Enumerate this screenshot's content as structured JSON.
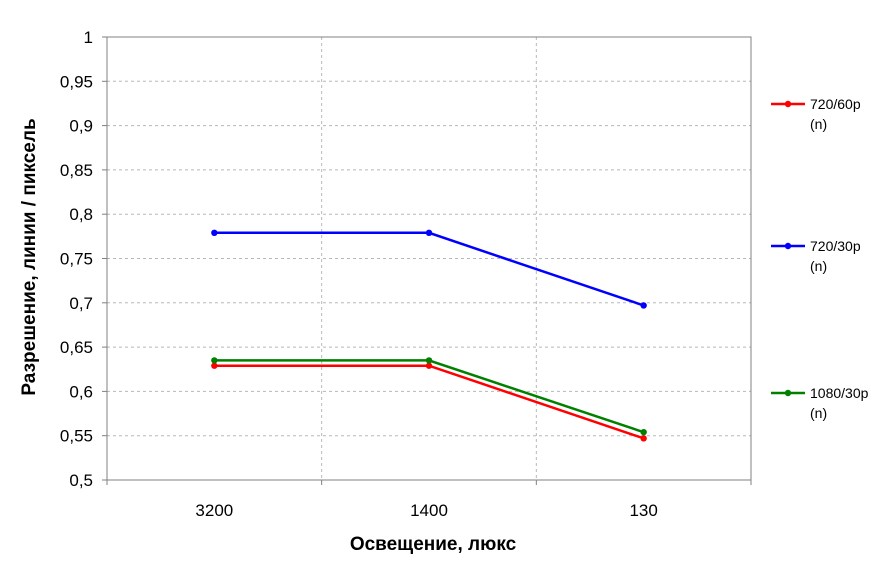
{
  "chart_data": {
    "type": "line",
    "title": "",
    "xlabel": "Освещение, люкс",
    "ylabel": "Разрешение, линии / пиксель",
    "categories": [
      "3200",
      "1400",
      "130"
    ],
    "ylim": [
      0.5,
      1.0
    ],
    "yticks": [
      "0,5",
      "0,55",
      "0,6",
      "0,65",
      "0,7",
      "0,75",
      "0,8",
      "0,85",
      "0,9",
      "0,95",
      "1"
    ],
    "ytick_values": [
      0.5,
      0.55,
      0.6,
      0.65,
      0.7,
      0.75,
      0.8,
      0.85,
      0.9,
      0.95,
      1.0
    ],
    "grid": true,
    "legend_position": "right",
    "series": [
      {
        "name": "720/60p (n)",
        "name_lines": [
          "720/60p",
          "(n)"
        ],
        "color": "#ff0000",
        "values": [
          0.629,
          0.629,
          0.547
        ]
      },
      {
        "name": "720/30p (n)",
        "name_lines": [
          "720/30p",
          "(n)"
        ],
        "color": "#0000ff",
        "values": [
          0.779,
          0.779,
          0.697
        ]
      },
      {
        "name": "1080/30p (n)",
        "name_lines": [
          "1080/30p",
          "(n)"
        ],
        "color": "#008000",
        "values": [
          0.635,
          0.635,
          0.554
        ]
      }
    ]
  }
}
